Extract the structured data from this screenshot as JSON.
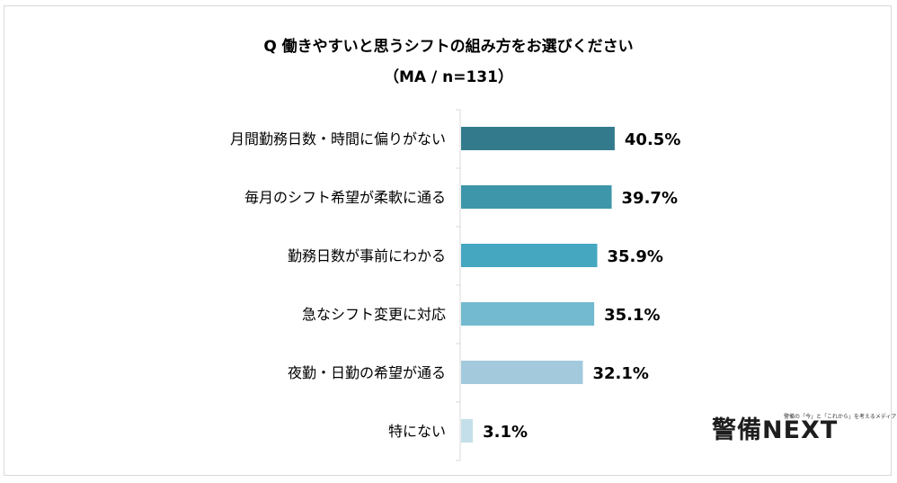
{
  "chart_data": {
    "type": "bar",
    "orientation": "horizontal",
    "title": "Q 働きやすいと思うシフトの組み方をお選びください",
    "subtitle": "（MA / n=131）",
    "categories": [
      "月間勤務日数・時間に偏りがない",
      "毎月のシフト希望が柔軟に通る",
      "勤務日数が事前にわかる",
      "急なシフト変更に対応",
      "夜勤・日勤の希望が通る",
      "特にない"
    ],
    "values": [
      40.5,
      39.7,
      35.9,
      35.1,
      32.1,
      3.1
    ],
    "value_labels": [
      "40.5%",
      "39.7%",
      "35.9%",
      "35.1%",
      "32.1%",
      "3.1%"
    ],
    "bar_colors": [
      "#337b8c",
      "#3e96aa",
      "#45a7c0",
      "#73b9cf",
      "#a2cadc",
      "#c4dfea"
    ],
    "xlim": [
      0,
      100
    ],
    "grid": false,
    "legend": "none",
    "xlabel": "",
    "ylabel": ""
  },
  "logo": {
    "main": "警備",
    "next": "NEXT",
    "tagline": "警備の「今」と「これから」を考えるメディア"
  }
}
